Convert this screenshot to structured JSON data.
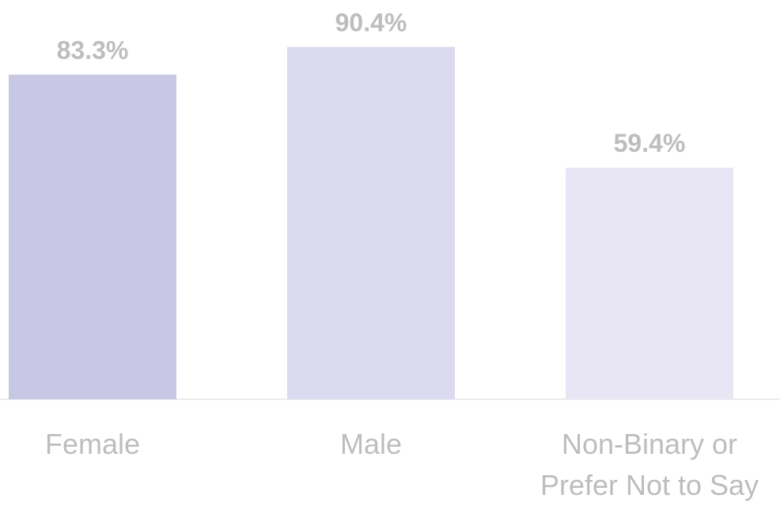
{
  "chart_data": {
    "type": "bar",
    "categories": [
      "Female",
      "Male",
      "Non-Binary or Prefer Not to Say"
    ],
    "values": [
      83.3,
      90.4,
      59.4
    ],
    "value_labels": [
      "83.3%",
      "90.4%",
      "59.4%"
    ],
    "colors": [
      "#c8c8e4",
      "#dcdaee",
      "#e8e6f4"
    ],
    "ylim": [
      0,
      100
    ]
  }
}
